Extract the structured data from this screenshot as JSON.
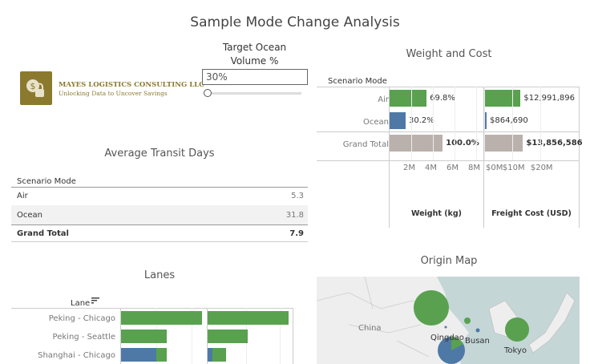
{
  "dashboard": {
    "title": "Sample Mode Change Analysis"
  },
  "colors": {
    "air": "#59a14f",
    "ocean": "#4e79a7",
    "total": "#bab0ac",
    "logo_bg": "#8b7a2e"
  },
  "logo": {
    "name": "MAYES LOGISTICS CONSULTING LLC",
    "tagline": "Unlocking Data to Uncover Savings",
    "icon": "dollar-lock-icon"
  },
  "parameter": {
    "label_line1": "Target Ocean",
    "label_line2": "Volume %",
    "value": "30%",
    "slider_fraction": 0.0
  },
  "transit": {
    "title": "Average Transit Days",
    "header": "Scenario Mode",
    "rows": [
      {
        "mode": "Air",
        "value": "5.3"
      },
      {
        "mode": "Ocean",
        "value": "31.8"
      },
      {
        "mode": "Grand Total",
        "value": "7.9"
      }
    ]
  },
  "chart_data": [
    {
      "type": "bar",
      "title": "Weight and Cost",
      "row_header": "Scenario Mode",
      "categories": [
        "Air",
        "Ocean",
        "Grand Total"
      ],
      "series": [
        {
          "name": "Weight (kg)",
          "values": [
            3420000,
            1480000,
            4900000
          ],
          "labels": [
            "69.8%",
            "30.2%",
            "100.0%"
          ],
          "ticks": [
            "2M",
            "4M",
            "6M",
            "8M"
          ],
          "xlim": [
            0,
            8000000
          ]
        },
        {
          "name": "Freight Cost (USD)",
          "values": [
            12991896,
            864690,
            13856586
          ],
          "labels": [
            "$12,991,896",
            "$864,690",
            "$13,856,586"
          ],
          "ticks": [
            "$0M",
            "$10M",
            "$20M"
          ],
          "xlim": [
            0,
            27000000
          ]
        }
      ]
    },
    {
      "type": "bar",
      "title": "Lanes",
      "row_header": "Lane",
      "stacked": true,
      "categories": [
        "Peking - Chicago",
        "Peking - Seattle",
        "Shanghai - Chicago"
      ],
      "panels": [
        {
          "ocean": [
            0,
            0,
            1.0
          ],
          "air": [
            2.3,
            1.3,
            0.3
          ]
        },
        {
          "ocean": [
            0,
            0,
            0.15
          ],
          "air": [
            2.4,
            1.2,
            0.4
          ]
        }
      ]
    }
  ],
  "map": {
    "title": "Origin Map",
    "labels": [
      "China",
      "Qingdao",
      "Busan",
      "Tokyo"
    ]
  }
}
